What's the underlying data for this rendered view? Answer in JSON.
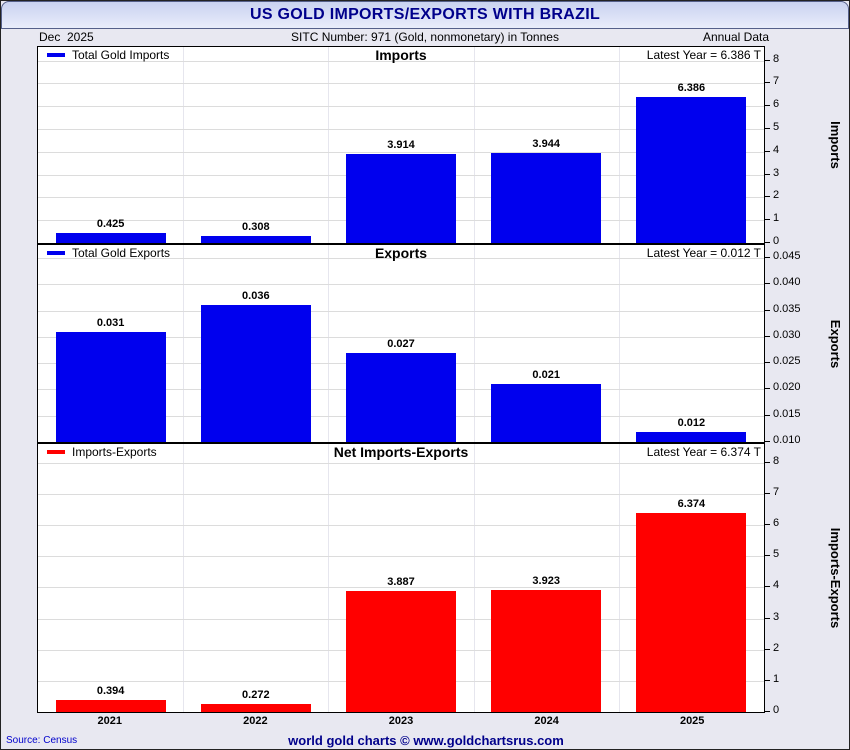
{
  "header": {
    "title": "US GOLD IMPORTS/EXPORTS WITH BRAZIL",
    "date": "Dec  2025",
    "sitc": "SITC Number: 971 (Gold, nonmonetary) in Tonnes",
    "annual": "Annual Data"
  },
  "footer": {
    "source": "Source: Census",
    "credit": "world gold charts © www.goldchartsrus.com"
  },
  "colors": {
    "imports_bar": "#0000ee",
    "exports_bar": "#0000ee",
    "net_bar": "#ff0000",
    "header_text": "#00008b"
  },
  "chart_data": [
    {
      "type": "bar",
      "title": "Imports",
      "legend": "Total Gold Imports",
      "latest": "Latest Year = 6.386 T",
      "ylabel": "Imports",
      "categories": [
        "2021",
        "2022",
        "2023",
        "2024",
        "2025"
      ],
      "values": [
        0.425,
        0.308,
        3.914,
        3.944,
        6.386
      ],
      "labels": [
        "0.425",
        "0.308",
        "3.914",
        "3.944",
        "6.386"
      ],
      "color": "#0000ee",
      "ylim": [
        0,
        8.6
      ],
      "yticks": [
        0,
        1,
        2,
        3,
        4,
        5,
        6,
        7,
        8
      ],
      "ytick_labels": [
        "0",
        "1",
        "2",
        "3",
        "4",
        "5",
        "6",
        "7",
        "8"
      ],
      "grid": true,
      "legend_position": "top-left"
    },
    {
      "type": "bar",
      "title": "Exports",
      "legend": "Total Gold Exports",
      "latest": "Latest Year = 0.012 T",
      "ylabel": "Exports",
      "categories": [
        "2021",
        "2022",
        "2023",
        "2024",
        "2025"
      ],
      "values": [
        0.031,
        0.036,
        0.027,
        0.021,
        0.012
      ],
      "labels": [
        "0.031",
        "0.036",
        "0.027",
        "0.021",
        "0.012"
      ],
      "color": "#0000ee",
      "ylim": [
        0.01,
        0.0475
      ],
      "yticks": [
        0.01,
        0.015,
        0.02,
        0.025,
        0.03,
        0.035,
        0.04,
        0.045
      ],
      "ytick_labels": [
        "0.010",
        "0.015",
        "0.020",
        "0.025",
        "0.030",
        "0.035",
        "0.040",
        "0.045"
      ],
      "grid": true,
      "legend_position": "top-left"
    },
    {
      "type": "bar",
      "title": "Net Imports-Exports",
      "legend": "Imports-Exports",
      "latest": "Latest Year = 6.374 T",
      "ylabel": "Imports-Exports",
      "categories": [
        "2021",
        "2022",
        "2023",
        "2024",
        "2025"
      ],
      "values": [
        0.394,
        0.272,
        3.887,
        3.923,
        6.374
      ],
      "labels": [
        "0.394",
        "0.272",
        "3.887",
        "3.923",
        "6.374"
      ],
      "color": "#ff0000",
      "ylim": [
        0,
        8.6
      ],
      "yticks": [
        0,
        1,
        2,
        3,
        4,
        5,
        6,
        7,
        8
      ],
      "ytick_labels": [
        "0",
        "1",
        "2",
        "3",
        "4",
        "5",
        "6",
        "7",
        "8"
      ],
      "grid": true,
      "legend_position": "top-left"
    }
  ]
}
